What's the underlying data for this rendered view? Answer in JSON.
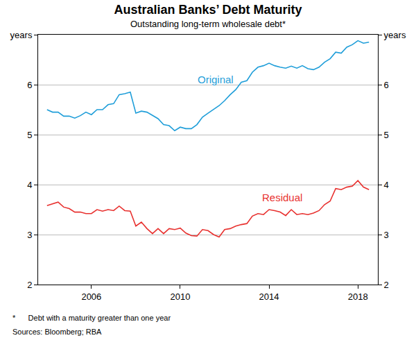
{
  "chart_data": {
    "type": "line",
    "title": "Australian Banks’ Debt Maturity",
    "subtitle": "Outstanding long-term wholesale debt*",
    "footnote": "*      Debt with a maturity greater than one year",
    "source": "Sources: Bloomberg; RBA",
    "x": [
      2004.0,
      2004.25,
      2004.5,
      2004.75,
      2005.0,
      2005.25,
      2005.5,
      2005.75,
      2006.0,
      2006.25,
      2006.5,
      2006.75,
      2007.0,
      2007.25,
      2007.5,
      2007.75,
      2008.0,
      2008.25,
      2008.5,
      2008.75,
      2009.0,
      2009.25,
      2009.5,
      2009.75,
      2010.0,
      2010.25,
      2010.5,
      2010.75,
      2011.0,
      2011.25,
      2011.5,
      2011.75,
      2012.0,
      2012.25,
      2012.5,
      2012.75,
      2013.0,
      2013.25,
      2013.5,
      2013.75,
      2014.0,
      2014.25,
      2014.5,
      2014.75,
      2015.0,
      2015.25,
      2015.5,
      2015.75,
      2016.0,
      2016.25,
      2016.5,
      2016.75,
      2017.0,
      2017.25,
      2017.5,
      2017.75,
      2018.0,
      2018.25,
      2018.5
    ],
    "series": [
      {
        "name": "Original",
        "color": "#1f9ed9",
        "values": [
          5.5,
          5.45,
          5.45,
          5.37,
          5.37,
          5.33,
          5.38,
          5.45,
          5.4,
          5.5,
          5.5,
          5.6,
          5.62,
          5.8,
          5.82,
          5.85,
          5.43,
          5.47,
          5.45,
          5.38,
          5.32,
          5.2,
          5.18,
          5.08,
          5.15,
          5.12,
          5.12,
          5.2,
          5.35,
          5.43,
          5.5,
          5.58,
          5.68,
          5.8,
          5.9,
          6.05,
          6.08,
          6.25,
          6.35,
          6.38,
          6.43,
          6.38,
          6.35,
          6.33,
          6.37,
          6.33,
          6.38,
          6.32,
          6.3,
          6.35,
          6.45,
          6.52,
          6.65,
          6.63,
          6.75,
          6.8,
          6.88,
          6.83,
          6.85
        ]
      },
      {
        "name": "Residual",
        "color": "#e8312f",
        "values": [
          3.58,
          3.62,
          3.65,
          3.55,
          3.52,
          3.45,
          3.45,
          3.42,
          3.42,
          3.5,
          3.47,
          3.5,
          3.48,
          3.57,
          3.48,
          3.47,
          3.17,
          3.25,
          3.12,
          3.02,
          3.12,
          3.02,
          3.12,
          3.1,
          3.13,
          3.03,
          2.98,
          2.97,
          3.1,
          3.08,
          3.0,
          2.95,
          3.1,
          3.12,
          3.17,
          3.2,
          3.22,
          3.37,
          3.42,
          3.4,
          3.5,
          3.48,
          3.45,
          3.38,
          3.5,
          3.4,
          3.42,
          3.4,
          3.43,
          3.48,
          3.6,
          3.67,
          3.92,
          3.9,
          3.95,
          3.97,
          4.08,
          3.95,
          3.9
        ]
      }
    ],
    "annotations": [
      {
        "text": "Original",
        "x": 2011.6,
        "y": 6.1,
        "color": "#1f9ed9"
      },
      {
        "text": "Residual",
        "x": 2014.6,
        "y": 3.75,
        "color": "#e8312f"
      }
    ],
    "xlim": [
      2003.6,
      2018.9
    ],
    "xticks": [
      2006,
      2010,
      2014,
      2018
    ],
    "ylim": [
      2,
      7
    ],
    "yticks": [
      2,
      3,
      4,
      5,
      6,
      {
        "value": 7,
        "label": "years"
      }
    ],
    "y2lim": [
      2,
      7
    ],
    "y2ticks": [
      2,
      3,
      4,
      5,
      6,
      {
        "value": 7,
        "label": "years"
      }
    ],
    "grid": true,
    "legend": false
  }
}
